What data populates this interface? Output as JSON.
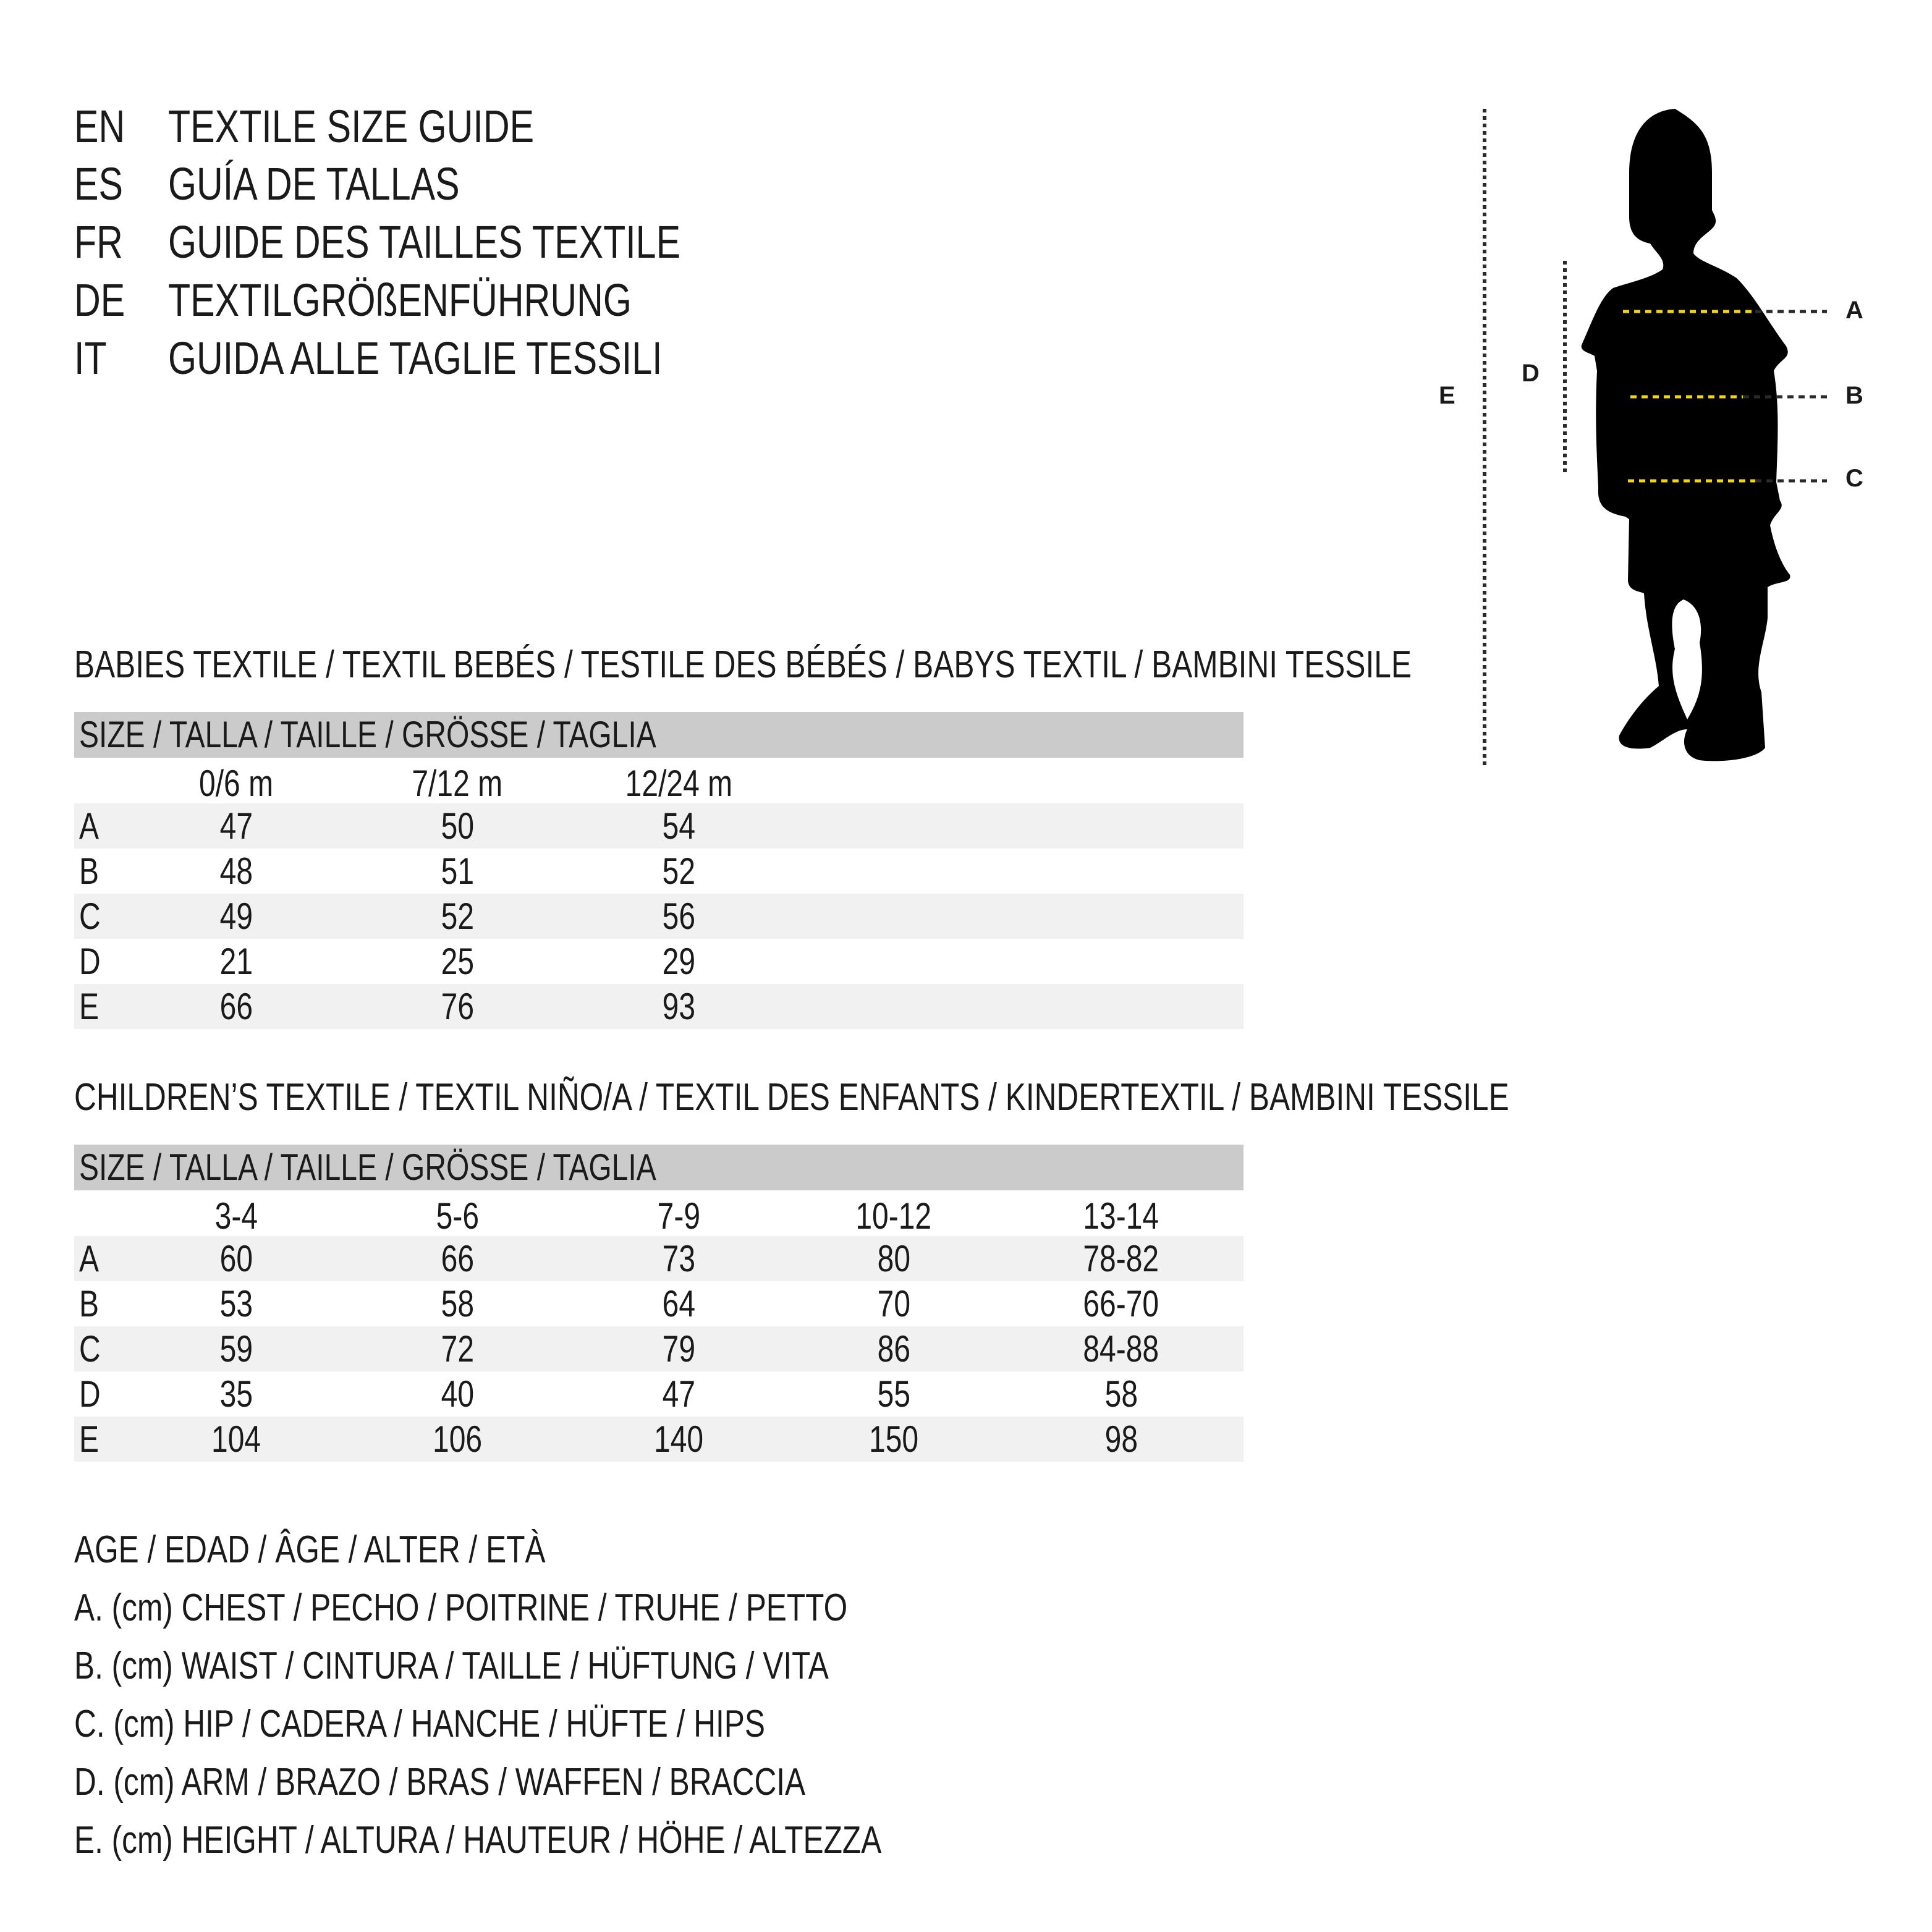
{
  "titles": [
    {
      "code": "EN",
      "text": "TEXTILE SIZE GUIDE"
    },
    {
      "code": "ES",
      "text": "GUÍA DE TALLAS"
    },
    {
      "code": "FR",
      "text": "GUIDE DES TAILLES TEXTILE"
    },
    {
      "code": "DE",
      "text": "TEXTILGRÖßENFÜHRUNG"
    },
    {
      "code": "IT",
      "text": "GUIDA ALLE TAGLIE TESSILI"
    }
  ],
  "babies": {
    "heading": "BABIES TEXTILE / TEXTIL BEBÉS / TESTILE DES BÉBÉS / BABYS TEXTIL / BAMBINI TESSILE",
    "size_header": "SIZE / TALLA / TAILLE / GRÖSSE / TAGLIA",
    "columns": [
      "0/6 m",
      "7/12 m",
      "12/24 m"
    ],
    "rows": [
      {
        "label": "A",
        "values": [
          "47",
          "50",
          "54"
        ]
      },
      {
        "label": "B",
        "values": [
          "48",
          "51",
          "52"
        ]
      },
      {
        "label": "C",
        "values": [
          "49",
          "52",
          "56"
        ]
      },
      {
        "label": "D",
        "values": [
          "21",
          "25",
          "29"
        ]
      },
      {
        "label": "E",
        "values": [
          "66",
          "76",
          "93"
        ]
      }
    ]
  },
  "children": {
    "heading": "CHILDREN’S TEXTILE / TEXTIL NIÑO/A / TEXTIL DES ENFANTS / KINDERTEXTIL / BAMBINI TESSILE",
    "size_header": "SIZE / TALLA / TAILLE / GRÖSSE / TAGLIA",
    "columns": [
      "3-4",
      "5-6",
      "7-9",
      "10-12",
      "13-14"
    ],
    "rows": [
      {
        "label": "A",
        "values": [
          "60",
          "66",
          "73",
          "80",
          "78-82"
        ]
      },
      {
        "label": "B",
        "values": [
          "53",
          "58",
          "64",
          "70",
          "66-70"
        ]
      },
      {
        "label": "C",
        "values": [
          "59",
          "72",
          "79",
          "86",
          "84-88"
        ]
      },
      {
        "label": "D",
        "values": [
          "35",
          "40",
          "47",
          "55",
          "58"
        ]
      },
      {
        "label": "E",
        "values": [
          "104",
          "106",
          "140",
          "150",
          "98"
        ]
      }
    ]
  },
  "legend": [
    "AGE / EDAD / ÂGE / ALTER / ETÀ",
    "A. (cm) CHEST / PECHO / POITRINE / TRUHE / PETTO",
    "B. (cm) WAIST / CINTURA / TAILLE / HÜFTUNG / VITA",
    "C. (cm) HIP / CADERA / HANCHE / HÜFTE / HIPS",
    "D. (cm) ARM / BRAZO / BRAS / WAFFEN / BRACCIA",
    "E. (cm) HEIGHT / ALTURA / HAUTEUR / HÖHE / ALTEZZA"
  ],
  "figure": {
    "labels": {
      "a": "A",
      "b": "B",
      "c": "C",
      "d": "D",
      "e": "E"
    },
    "colors": {
      "measure_line": "#f2d31b",
      "guide_line": "#2a2a2a",
      "silhouette": "#000000",
      "header_bg": "#cbcbcc",
      "row_bg": "#f1f1f1"
    }
  }
}
